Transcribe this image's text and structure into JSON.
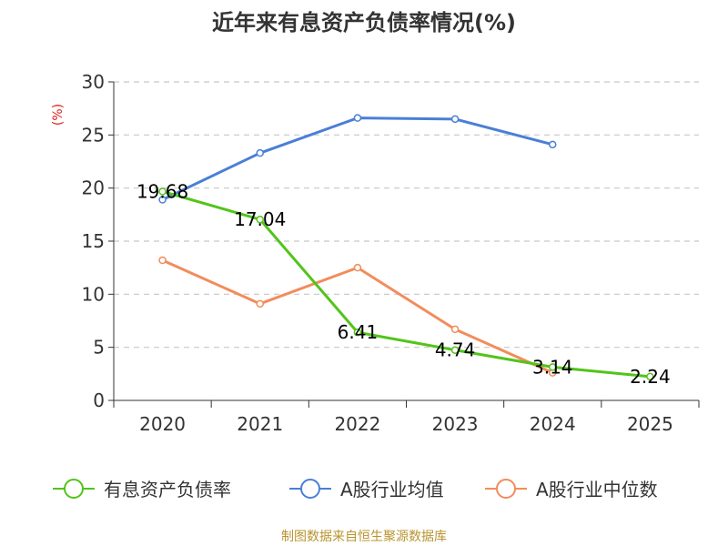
{
  "chart_data": {
    "type": "line",
    "title": "近年来有息资产负债率情况(%)",
    "ylabel": "(%)",
    "xlabel": "",
    "categories": [
      "2020",
      "2021",
      "2022",
      "2023",
      "2024",
      "2025"
    ],
    "ylim": [
      0,
      30
    ],
    "yticks": [
      0,
      5,
      10,
      15,
      20,
      25,
      30
    ],
    "grid": true,
    "legend_position": "bottom",
    "series": [
      {
        "name": "有息资产负债率",
        "color": "#52c41a",
        "values": [
          19.68,
          17.04,
          6.41,
          4.74,
          3.14,
          2.24
        ],
        "labels": [
          "19.68",
          "17.04",
          "6.41",
          "4.74",
          "3.14",
          "2.24"
        ]
      },
      {
        "name": "A股行业均值",
        "color": "#4a7fd6",
        "values": [
          18.9,
          23.3,
          26.6,
          26.5,
          24.1,
          null
        ]
      },
      {
        "name": "A股行业中位数",
        "color": "#f28c5b",
        "values": [
          13.2,
          9.1,
          12.5,
          6.7,
          2.6,
          null
        ]
      }
    ]
  },
  "footer": "制图数据来自恒生聚源数据库"
}
